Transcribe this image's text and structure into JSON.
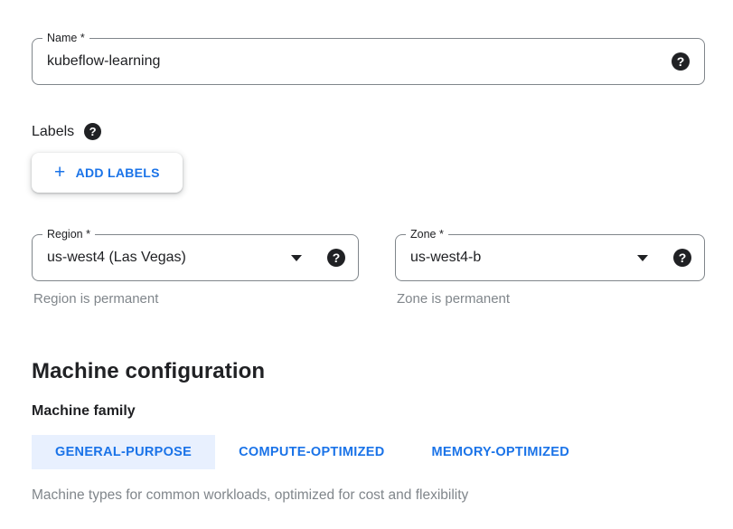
{
  "colors": {
    "accent_blue": "#1a73e8",
    "tab_selected_bg": "#e8f0fe",
    "text_dark": "#202124",
    "text_gray": "#80868b",
    "field_border": "#80868b",
    "help_icon_bg": "#202124"
  },
  "icons": {
    "help_glyph": "?",
    "plus_glyph": "+"
  },
  "name_field": {
    "label": "Name *",
    "value": "kubeflow-learning"
  },
  "labels_section": {
    "title": "Labels",
    "add_button_label": "ADD LABELS"
  },
  "region_field": {
    "label": "Region *",
    "value": "us-west4 (Las Vegas)",
    "helper": "Region is permanent"
  },
  "zone_field": {
    "label": "Zone *",
    "value": "us-west4-b",
    "helper": "Zone is permanent"
  },
  "machine_configuration": {
    "title": "Machine configuration",
    "subtitle": "Machine family",
    "tabs": [
      {
        "label": "GENERAL-PURPOSE",
        "selected": true
      },
      {
        "label": "COMPUTE-OPTIMIZED",
        "selected": false
      },
      {
        "label": "MEMORY-OPTIMIZED",
        "selected": false
      }
    ],
    "description": "Machine types for common workloads, optimized for cost and flexibility"
  }
}
